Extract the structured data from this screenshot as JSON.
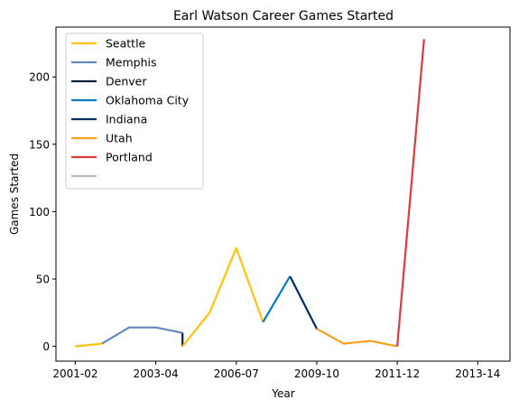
{
  "chart_data": {
    "type": "line",
    "title": "Earl Watson Career Games Started",
    "xlabel": "Year",
    "ylabel": "Games Started",
    "x_ticks": [
      "2001-02",
      "2003-04",
      "2006-07",
      "2009-10",
      "2011-12",
      "2013-14"
    ],
    "x_tick_positions": [
      0,
      2.5,
      5,
      7.5,
      10,
      12.5
    ],
    "xlim": [
      -0.6,
      13.5
    ],
    "y_ticks": [
      0,
      50,
      100,
      150,
      200
    ],
    "ylim": [
      -11,
      237
    ],
    "grid": false,
    "legend_placement": "top-left",
    "series": [
      {
        "name": "Seattle",
        "color": "#FFC20E",
        "points": [
          [
            0,
            0
          ],
          [
            0.83,
            2
          ]
        ]
      },
      {
        "name": "Memphis",
        "color": "#6189B9",
        "points": [
          [
            0.83,
            2
          ],
          [
            1.67,
            14
          ],
          [
            2.5,
            14
          ],
          [
            3.33,
            10
          ]
        ]
      },
      {
        "name": "Denver",
        "color": "#0E2240",
        "points": [
          [
            3.33,
            10
          ],
          [
            3.33,
            0
          ]
        ]
      },
      {
        "name": "Seattle",
        "color": "#FFC20E",
        "points": [
          [
            3.33,
            0
          ],
          [
            4.17,
            25
          ],
          [
            5.0,
            73
          ],
          [
            5.83,
            18
          ]
        ]
      },
      {
        "name": "Oklahoma City",
        "color": "#007AC1",
        "points": [
          [
            5.83,
            18
          ],
          [
            6.67,
            52
          ]
        ]
      },
      {
        "name": "Indiana",
        "color": "#002D62",
        "points": [
          [
            6.67,
            52
          ],
          [
            7.5,
            13
          ]
        ]
      },
      {
        "name": "Utah",
        "color": "#F9A01B",
        "points": [
          [
            7.5,
            13
          ],
          [
            8.33,
            2
          ],
          [
            9.17,
            4
          ],
          [
            10.0,
            0
          ]
        ]
      },
      {
        "name": "Portland",
        "color": "#E03A3E",
        "points": [
          [
            10.0,
            0
          ],
          [
            10.83,
            228
          ]
        ]
      }
    ],
    "legend": [
      {
        "name": "Seattle",
        "color": "#FFC20E"
      },
      {
        "name": "Memphis",
        "color": "#6189B9"
      },
      {
        "name": "Denver",
        "color": "#0E2240"
      },
      {
        "name": "Oklahoma City",
        "color": "#007AC1"
      },
      {
        "name": "Indiana",
        "color": "#002D62"
      },
      {
        "name": "Utah",
        "color": "#F9A01B"
      },
      {
        "name": "Portland",
        "color": "#E03A3E"
      },
      {
        "name": "",
        "color": "#BBBBBB"
      }
    ]
  }
}
